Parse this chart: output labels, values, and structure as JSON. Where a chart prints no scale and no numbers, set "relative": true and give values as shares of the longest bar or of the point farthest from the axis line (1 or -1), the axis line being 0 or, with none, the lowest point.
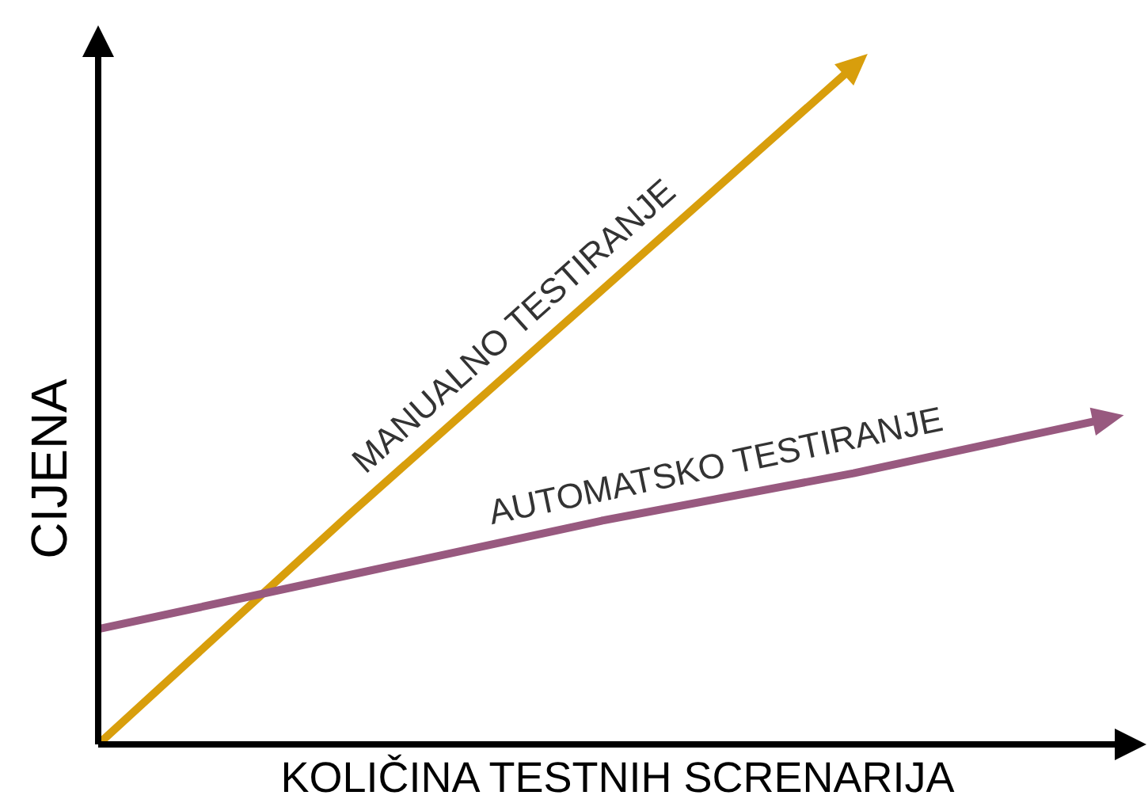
{
  "chart_data": {
    "type": "line",
    "relative": true,
    "xlabel": "KOLIČINA TESTNIH SCRENARIJA",
    "ylabel": "CIJENA",
    "categories": [
      null,
      null,
      null,
      null,
      null
    ],
    "marker": "none",
    "line_style": "solid",
    "series": [
      {
        "name": "MANUALNO TESTIRANJE",
        "color": "#d89e0c",
        "values": [
          0,
          0.34,
          0.67,
          1,
          null
        ]
      },
      {
        "name": "AUTOMATSKO TESTIRANJE",
        "color": "#98597f",
        "values": [
          0.17,
          0.25,
          0.33,
          0.4,
          0.48
        ]
      }
    ]
  }
}
